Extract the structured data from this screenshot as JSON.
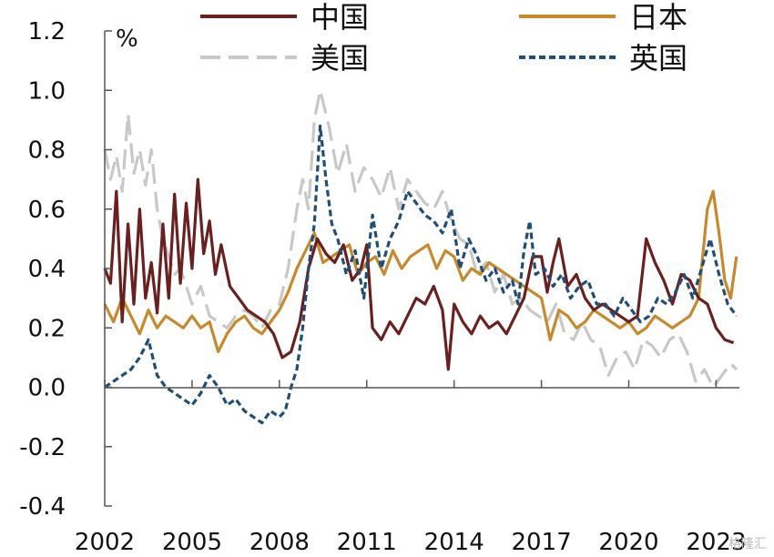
{
  "chart_data": {
    "type": "line",
    "title": "",
    "xlabel": "",
    "ylabel": "",
    "unit": "%",
    "ylim": [
      -0.4,
      1.2
    ],
    "yticks": [
      -0.4,
      -0.2,
      0.0,
      0.2,
      0.4,
      0.6,
      0.8,
      1.0,
      1.2
    ],
    "ytick_labels": [
      "-0.4",
      "-0.2",
      "0.0",
      "0.2",
      "0.4",
      "0.6",
      "0.8",
      "1.0",
      "1.2"
    ],
    "xlim": [
      2002,
      2023.8
    ],
    "xticks": [
      2002,
      2005,
      2008,
      2011,
      2014,
      2017,
      2020,
      2023
    ],
    "xtick_labels": [
      "2002",
      "2005",
      "2008",
      "2011",
      "2014",
      "2017",
      "2020",
      "2023"
    ],
    "grid": false,
    "legend_position": "top",
    "series": [
      {
        "name": "中国",
        "color": "#6b1f1f",
        "dash": "solid",
        "x": [
          2002.0,
          2002.2,
          2002.4,
          2002.6,
          2002.8,
          2003.0,
          2003.2,
          2003.4,
          2003.6,
          2003.8,
          2004.0,
          2004.2,
          2004.4,
          2004.6,
          2004.8,
          2005.0,
          2005.2,
          2005.4,
          2005.6,
          2005.8,
          2006.0,
          2006.3,
          2006.6,
          2006.9,
          2007.2,
          2007.5,
          2007.8,
          2008.1,
          2008.4,
          2008.7,
          2009.0,
          2009.3,
          2009.6,
          2009.9,
          2010.2,
          2010.5,
          2010.8,
          2011.0,
          2011.2,
          2011.5,
          2011.8,
          2012.1,
          2012.4,
          2012.7,
          2013.0,
          2013.3,
          2013.6,
          2013.8,
          2014.0,
          2014.3,
          2014.6,
          2014.9,
          2015.2,
          2015.5,
          2015.8,
          2016.1,
          2016.4,
          2016.7,
          2017.0,
          2017.2,
          2017.4,
          2017.6,
          2017.9,
          2018.2,
          2018.5,
          2018.8,
          2019.1,
          2019.4,
          2019.7,
          2020.0,
          2020.3,
          2020.6,
          2020.9,
          2021.2,
          2021.5,
          2021.8,
          2022.1,
          2022.4,
          2022.7,
          2023.0,
          2023.3,
          2023.6
        ],
        "values": [
          0.4,
          0.35,
          0.66,
          0.22,
          0.55,
          0.28,
          0.6,
          0.3,
          0.42,
          0.25,
          0.55,
          0.3,
          0.65,
          0.35,
          0.62,
          0.4,
          0.7,
          0.45,
          0.56,
          0.38,
          0.48,
          0.34,
          0.3,
          0.26,
          0.24,
          0.22,
          0.18,
          0.1,
          0.12,
          0.22,
          0.4,
          0.5,
          0.45,
          0.42,
          0.48,
          0.36,
          0.4,
          0.48,
          0.2,
          0.16,
          0.22,
          0.18,
          0.24,
          0.3,
          0.28,
          0.34,
          0.26,
          0.06,
          0.28,
          0.22,
          0.18,
          0.24,
          0.2,
          0.22,
          0.18,
          0.24,
          0.3,
          0.44,
          0.44,
          0.32,
          0.42,
          0.5,
          0.34,
          0.38,
          0.3,
          0.26,
          0.28,
          0.26,
          0.24,
          0.22,
          0.24,
          0.5,
          0.42,
          0.36,
          0.28,
          0.38,
          0.36,
          0.3,
          0.28,
          0.2,
          0.16,
          0.15
        ]
      },
      {
        "name": "日本",
        "color": "#c8892b",
        "dash": "solid",
        "x": [
          2002.0,
          2002.3,
          2002.6,
          2002.9,
          2003.2,
          2003.5,
          2003.8,
          2004.1,
          2004.4,
          2004.7,
          2005.0,
          2005.3,
          2005.6,
          2005.9,
          2006.2,
          2006.5,
          2006.8,
          2007.1,
          2007.4,
          2007.7,
          2008.0,
          2008.3,
          2008.6,
          2008.9,
          2009.2,
          2009.5,
          2009.8,
          2010.1,
          2010.4,
          2010.7,
          2011.0,
          2011.3,
          2011.6,
          2011.9,
          2012.2,
          2012.5,
          2012.8,
          2013.1,
          2013.4,
          2013.7,
          2014.0,
          2014.3,
          2014.6,
          2014.9,
          2015.2,
          2015.5,
          2015.8,
          2016.1,
          2016.4,
          2016.7,
          2017.0,
          2017.3,
          2017.6,
          2017.9,
          2018.2,
          2018.5,
          2018.8,
          2019.1,
          2019.4,
          2019.7,
          2020.0,
          2020.3,
          2020.6,
          2020.9,
          2021.2,
          2021.5,
          2021.8,
          2022.1,
          2022.4,
          2022.7,
          2022.9,
          2023.1,
          2023.3,
          2023.5,
          2023.7
        ],
        "values": [
          0.28,
          0.22,
          0.3,
          0.24,
          0.18,
          0.26,
          0.2,
          0.24,
          0.22,
          0.2,
          0.24,
          0.2,
          0.22,
          0.12,
          0.18,
          0.22,
          0.24,
          0.2,
          0.18,
          0.22,
          0.26,
          0.32,
          0.4,
          0.46,
          0.52,
          0.42,
          0.44,
          0.46,
          0.48,
          0.38,
          0.42,
          0.44,
          0.38,
          0.46,
          0.4,
          0.44,
          0.46,
          0.48,
          0.4,
          0.46,
          0.44,
          0.36,
          0.4,
          0.38,
          0.42,
          0.4,
          0.38,
          0.36,
          0.34,
          0.32,
          0.3,
          0.16,
          0.26,
          0.24,
          0.2,
          0.22,
          0.26,
          0.24,
          0.22,
          0.2,
          0.22,
          0.18,
          0.2,
          0.24,
          0.22,
          0.2,
          0.22,
          0.24,
          0.3,
          0.6,
          0.66,
          0.52,
          0.36,
          0.3,
          0.44
        ]
      },
      {
        "name": "美国",
        "color": "#c8c8c8",
        "dash": "long-dash",
        "x": [
          2002.0,
          2002.2,
          2002.4,
          2002.6,
          2002.8,
          2003.0,
          2003.2,
          2003.4,
          2003.6,
          2003.8,
          2004.0,
          2004.2,
          2004.4,
          2004.6,
          2004.8,
          2005.0,
          2005.3,
          2005.6,
          2005.9,
          2006.2,
          2006.5,
          2006.8,
          2007.1,
          2007.4,
          2007.7,
          2008.0,
          2008.3,
          2008.6,
          2008.8,
          2009.0,
          2009.2,
          2009.4,
          2009.7,
          2010.0,
          2010.3,
          2010.6,
          2010.9,
          2011.2,
          2011.5,
          2011.8,
          2012.1,
          2012.4,
          2012.7,
          2013.0,
          2013.3,
          2013.6,
          2013.9,
          2014.2,
          2014.5,
          2014.8,
          2015.1,
          2015.4,
          2015.7,
          2016.0,
          2016.3,
          2016.6,
          2016.9,
          2017.2,
          2017.5,
          2017.8,
          2018.1,
          2018.4,
          2018.7,
          2019.0,
          2019.3,
          2019.6,
          2019.9,
          2020.2,
          2020.5,
          2020.8,
          2021.1,
          2021.4,
          2021.7,
          2022.0,
          2022.3,
          2022.6,
          2022.9,
          2023.2,
          2023.5,
          2023.7
        ],
        "values": [
          0.8,
          0.7,
          0.78,
          0.66,
          0.92,
          0.72,
          0.8,
          0.68,
          0.8,
          0.6,
          0.5,
          0.44,
          0.38,
          0.4,
          0.34,
          0.28,
          0.34,
          0.24,
          0.22,
          0.2,
          0.24,
          0.26,
          0.24,
          0.2,
          0.26,
          0.28,
          0.4,
          0.6,
          0.7,
          0.6,
          0.9,
          1.0,
          0.88,
          0.72,
          0.82,
          0.66,
          0.74,
          0.7,
          0.64,
          0.74,
          0.6,
          0.7,
          0.66,
          0.62,
          0.6,
          0.66,
          0.56,
          0.5,
          0.48,
          0.38,
          0.42,
          0.32,
          0.38,
          0.28,
          0.3,
          0.26,
          0.24,
          0.22,
          0.28,
          0.18,
          0.16,
          0.22,
          0.16,
          0.14,
          0.04,
          0.1,
          0.12,
          0.06,
          0.16,
          0.14,
          0.1,
          0.16,
          0.18,
          0.12,
          0.02,
          0.06,
          0.0,
          0.04,
          0.08,
          0.06
        ]
      },
      {
        "name": "英国",
        "color": "#1f4e79",
        "dash": "short-dash",
        "x": [
          2002.0,
          2002.3,
          2002.6,
          2002.9,
          2003.2,
          2003.5,
          2003.8,
          2004.1,
          2004.4,
          2004.7,
          2005.0,
          2005.3,
          2005.6,
          2005.9,
          2006.2,
          2006.5,
          2006.8,
          2007.1,
          2007.4,
          2007.7,
          2008.0,
          2008.2,
          2008.4,
          2008.6,
          2008.8,
          2009.0,
          2009.2,
          2009.4,
          2009.6,
          2009.8,
          2010.0,
          2010.3,
          2010.6,
          2010.9,
          2011.2,
          2011.5,
          2011.8,
          2012.1,
          2012.4,
          2012.7,
          2013.0,
          2013.3,
          2013.6,
          2013.9,
          2014.2,
          2014.5,
          2014.8,
          2015.1,
          2015.4,
          2015.7,
          2016.0,
          2016.2,
          2016.4,
          2016.6,
          2016.8,
          2017.1,
          2017.4,
          2017.7,
          2018.0,
          2018.3,
          2018.6,
          2018.9,
          2019.2,
          2019.5,
          2019.8,
          2020.1,
          2020.4,
          2020.7,
          2021.0,
          2021.3,
          2021.6,
          2021.9,
          2022.2,
          2022.5,
          2022.8,
          2023.1,
          2023.4,
          2023.7
        ],
        "values": [
          0.0,
          0.02,
          0.04,
          0.06,
          0.1,
          0.16,
          0.04,
          0.0,
          -0.02,
          -0.04,
          -0.06,
          -0.02,
          0.04,
          0.0,
          -0.06,
          -0.04,
          -0.08,
          -0.1,
          -0.12,
          -0.08,
          -0.1,
          -0.08,
          0.0,
          0.06,
          0.2,
          0.4,
          0.55,
          0.88,
          0.7,
          0.55,
          0.5,
          0.38,
          0.46,
          0.3,
          0.58,
          0.4,
          0.5,
          0.56,
          0.66,
          0.62,
          0.58,
          0.56,
          0.52,
          0.6,
          0.4,
          0.5,
          0.44,
          0.36,
          0.4,
          0.32,
          0.36,
          0.28,
          0.46,
          0.56,
          0.38,
          0.4,
          0.34,
          0.38,
          0.3,
          0.34,
          0.36,
          0.28,
          0.28,
          0.24,
          0.3,
          0.26,
          0.22,
          0.24,
          0.3,
          0.28,
          0.32,
          0.38,
          0.3,
          0.4,
          0.5,
          0.38,
          0.28,
          0.24
        ]
      }
    ]
  },
  "watermark": "格隆汇"
}
